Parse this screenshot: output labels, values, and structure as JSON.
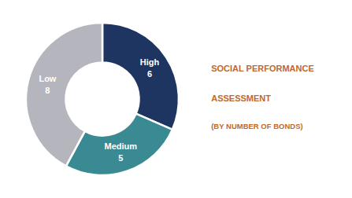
{
  "chart_data": {
    "type": "pie",
    "title": [
      "SOCIAL PERFORMANCE",
      "ASSESSMENT"
    ],
    "subtitle": "(BY NUMBER OF BONDS)",
    "categories": [
      "High",
      "Medium",
      "Low"
    ],
    "values": [
      6,
      5,
      8
    ],
    "colors": [
      "#1e3461",
      "#3a8a94",
      "#b5b5be"
    ],
    "data_labels": true
  }
}
